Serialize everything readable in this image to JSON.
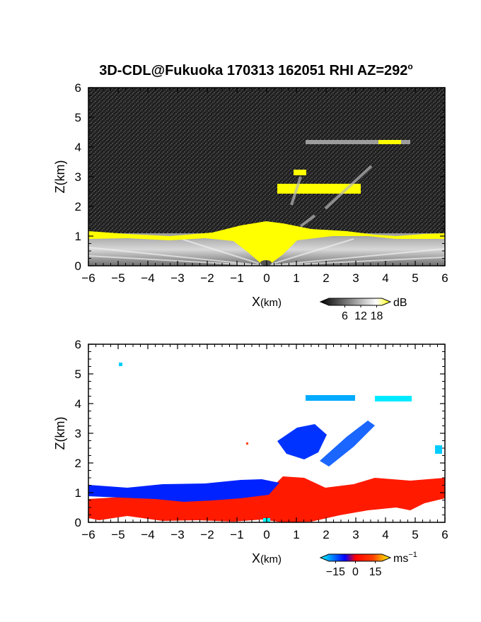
{
  "title": "3D-CDL@Fukuoka 170313 162051 RHI AZ=292",
  "title_superscript": "o",
  "chart_data": [
    {
      "type": "heatmap",
      "panel": "reflectivity",
      "xlabel_main": "X",
      "xlabel_unit": "(km)",
      "ylabel": "Z(km)",
      "xlim": [
        -6,
        6
      ],
      "ylim": [
        0,
        6
      ],
      "x_ticks": [
        "−6",
        "−5",
        "−4",
        "−3",
        "−2",
        "−1",
        "0",
        "1",
        "2",
        "3",
        "4",
        "5",
        "6"
      ],
      "y_ticks": [
        "0",
        "1",
        "2",
        "3",
        "4",
        "5",
        "6"
      ],
      "colorbar": {
        "unit": "dB",
        "tick_values": [
          6,
          12,
          18
        ],
        "tick_labels": [
          "6",
          "12",
          "18"
        ],
        "range": [
          0,
          20
        ],
        "colors": [
          "#000000",
          "#ffffff",
          "#ffff00"
        ]
      },
      "features": [
        {
          "name": "near-ground echo layer",
          "x": [
            -6,
            6
          ],
          "z": [
            0,
            1.2
          ],
          "value_db": "6-18"
        },
        {
          "name": "yellow band top",
          "x": [
            -6,
            6
          ],
          "z": [
            0.9,
            1.3
          ],
          "value_db": ">=18"
        },
        {
          "name": "elevated echo",
          "x": [
            0.5,
            3.0
          ],
          "z": [
            2.5,
            2.8
          ],
          "value_db": ">=18"
        },
        {
          "name": "upper thin layer",
          "x": [
            1.2,
            4.8
          ],
          "z": [
            4.1,
            4.2
          ],
          "value_db": "12-18"
        }
      ]
    },
    {
      "type": "heatmap",
      "panel": "doppler-velocity",
      "xlabel_main": "X",
      "xlabel_unit": "(km)",
      "ylabel": "Z(km)",
      "xlim": [
        -6,
        6
      ],
      "ylim": [
        0,
        6
      ],
      "x_ticks": [
        "−6",
        "−5",
        "−4",
        "−3",
        "−2",
        "−1",
        "0",
        "1",
        "2",
        "3",
        "4",
        "5",
        "6"
      ],
      "y_ticks": [
        "0",
        "1",
        "2",
        "3",
        "4",
        "5",
        "6"
      ],
      "colorbar": {
        "unit": "ms",
        "unit_superscript": "−1",
        "tick_values": [
          -15,
          0,
          15
        ],
        "tick_labels": [
          "−15",
          "0",
          "15"
        ],
        "range": [
          -20,
          20
        ],
        "colors": [
          "#00ffff",
          "#0000ff",
          "#ff0000",
          "#ffff00"
        ]
      },
      "features": [
        {
          "name": "low-level approaching flow",
          "x": [
            -6,
            0.5
          ],
          "z": [
            0.8,
            1.2
          ],
          "value_ms": -12
        },
        {
          "name": "low-level receding flow",
          "x": [
            -6,
            6
          ],
          "z": [
            0.0,
            1.1
          ],
          "value_ms": 10
        },
        {
          "name": "elevated band",
          "x": [
            0.4,
            3.6
          ],
          "z": [
            2.0,
            3.4
          ],
          "value_ms": -10
        },
        {
          "name": "upper layer",
          "x": [
            1.3,
            4.8
          ],
          "z": [
            4.1,
            4.3
          ],
          "value_ms": -16
        }
      ]
    }
  ]
}
